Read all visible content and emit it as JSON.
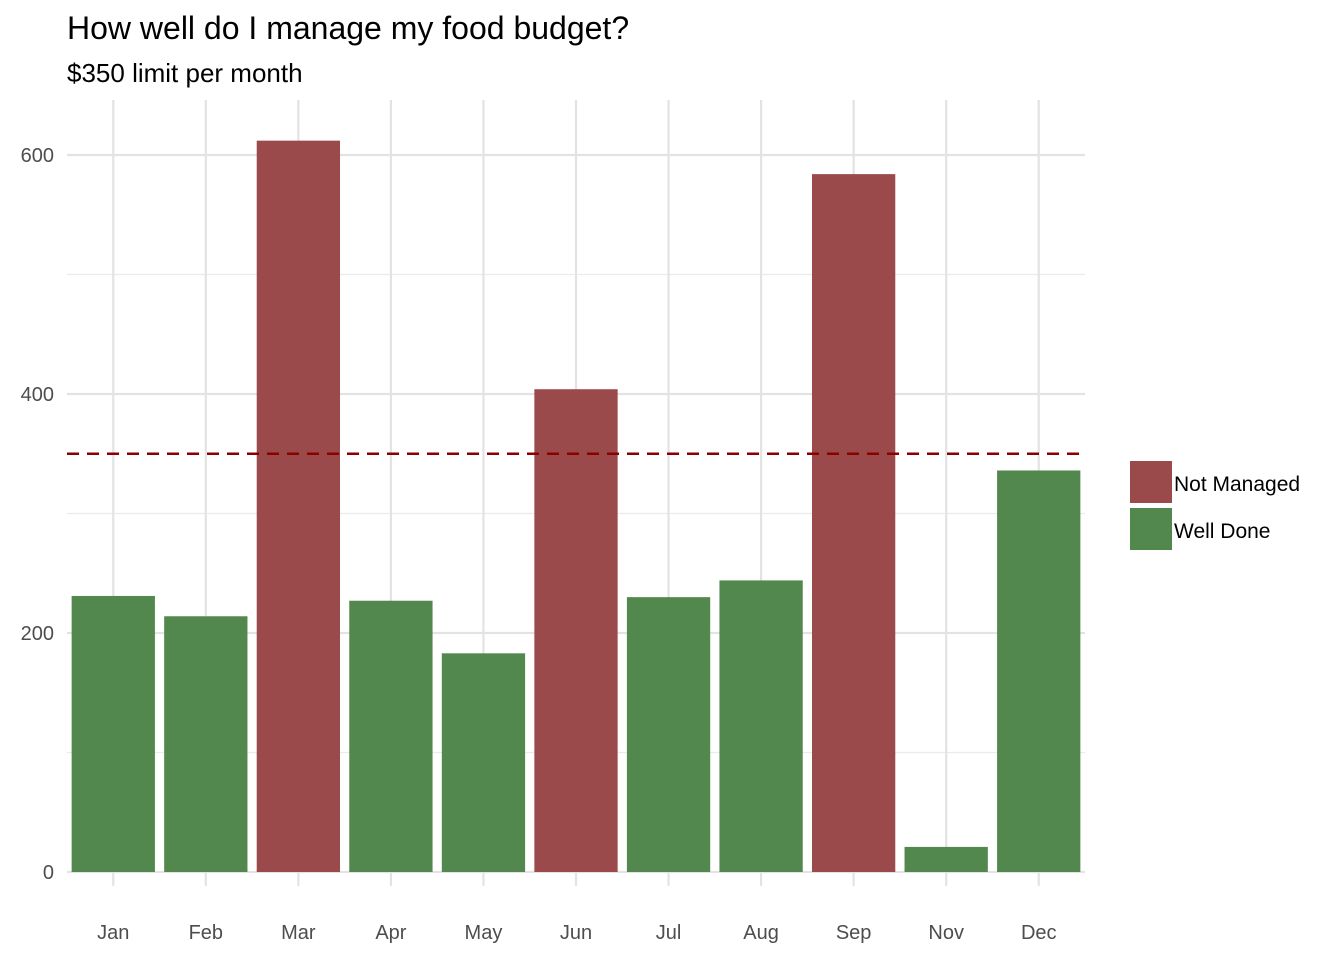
{
  "chart_data": {
    "type": "bar",
    "title": "How well do I manage my food budget?",
    "subtitle": "$350 limit per month",
    "xlabel": "",
    "ylabel": "",
    "categories": [
      "Jan",
      "Feb",
      "Mar",
      "Apr",
      "May",
      "Jun",
      "Jul",
      "Aug",
      "Sep",
      "Nov",
      "Dec"
    ],
    "values": [
      231,
      214,
      612,
      227,
      183,
      404,
      230,
      244,
      584,
      21,
      336
    ],
    "groups": [
      "Well Done",
      "Well Done",
      "Not Managed",
      "Well Done",
      "Well Done",
      "Not Managed",
      "Well Done",
      "Well Done",
      "Not Managed",
      "Well Done",
      "Well Done"
    ],
    "ylim": [
      0,
      640
    ],
    "yticks": [
      0,
      200,
      400,
      600
    ],
    "reference_line": {
      "value": 350,
      "style": "dashed",
      "color": "#8b0000"
    },
    "legend": {
      "placement": "right",
      "entries": [
        {
          "label": "Not Managed",
          "color": "#9a4a4b"
        },
        {
          "label": "Well Done",
          "color": "#52874d"
        }
      ]
    },
    "grid": true
  }
}
